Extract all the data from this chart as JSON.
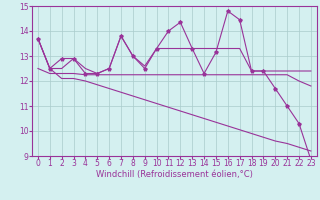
{
  "x": [
    0,
    1,
    2,
    3,
    4,
    5,
    6,
    7,
    8,
    9,
    10,
    11,
    12,
    13,
    14,
    15,
    16,
    17,
    18,
    19,
    20,
    21,
    22,
    23
  ],
  "line_zigzag": [
    13.7,
    12.5,
    12.9,
    12.9,
    12.3,
    12.3,
    12.5,
    13.8,
    13.0,
    12.5,
    13.3,
    14.0,
    14.35,
    13.3,
    12.3,
    13.15,
    14.8,
    14.45,
    12.4,
    12.4,
    11.7,
    11.0,
    10.3,
    8.85
  ],
  "line_flat": [
    12.5,
    12.3,
    12.3,
    12.3,
    12.25,
    12.25,
    12.25,
    12.25,
    12.25,
    12.25,
    12.25,
    12.25,
    12.25,
    12.25,
    12.25,
    12.25,
    12.25,
    12.25,
    12.25,
    12.25,
    12.25,
    12.25,
    12.0,
    11.8
  ],
  "line_upper": [
    13.7,
    12.5,
    12.5,
    12.9,
    12.5,
    12.3,
    12.5,
    13.8,
    13.0,
    12.6,
    13.3,
    13.3,
    13.3,
    13.3,
    13.3,
    13.3,
    13.3,
    13.3,
    12.4,
    12.4,
    12.4,
    12.4,
    12.4,
    12.4
  ],
  "line_decline": [
    13.7,
    12.5,
    12.1,
    12.1,
    12.0,
    11.85,
    11.7,
    11.55,
    11.4,
    11.25,
    11.1,
    10.95,
    10.8,
    10.65,
    10.5,
    10.35,
    10.2,
    10.05,
    9.9,
    9.75,
    9.6,
    9.5,
    9.35,
    9.2
  ],
  "color": "#993399",
  "bg_color": "#d4f0f0",
  "grid_color": "#aacccc",
  "ylim": [
    9,
    15
  ],
  "xlim": [
    -0.5,
    23.5
  ],
  "yticks": [
    9,
    10,
    11,
    12,
    13,
    14,
    15
  ],
  "xticks": [
    0,
    1,
    2,
    3,
    4,
    5,
    6,
    7,
    8,
    9,
    10,
    11,
    12,
    13,
    14,
    15,
    16,
    17,
    18,
    19,
    20,
    21,
    22,
    23
  ],
  "xlabel": "Windchill (Refroidissement éolien,°C)",
  "label_fontsize": 6.0,
  "tick_fontsize": 5.5
}
